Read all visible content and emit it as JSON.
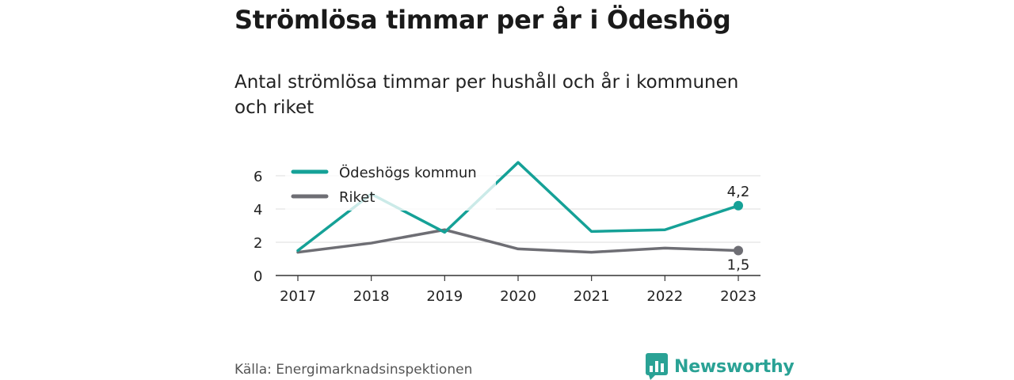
{
  "header": {
    "title": "Strömlösa timmar per år i Ödeshög",
    "subtitle": "Antal strömlösa timmar per hushåll och år i kommunen och riket"
  },
  "footer": {
    "source": "Källa: Energimarknadsinspektionen",
    "brand": "Newsworthy",
    "brand_icon": "newsworthy-logo-icon",
    "brand_color": "#2aa295"
  },
  "chart_data": {
    "type": "line",
    "categories": [
      "2017",
      "2018",
      "2019",
      "2020",
      "2021",
      "2022",
      "2023"
    ],
    "series": [
      {
        "name": "Ödeshögs kommun",
        "color": "#15a197",
        "values": [
          1.5,
          4.9,
          2.6,
          6.8,
          2.65,
          2.75,
          4.2
        ],
        "end_label": "4,2"
      },
      {
        "name": "Riket",
        "color": "#6e6e74",
        "values": [
          1.4,
          1.95,
          2.75,
          1.6,
          1.4,
          1.65,
          1.5
        ],
        "end_label": "1,5"
      }
    ],
    "y_ticks": [
      "0",
      "2",
      "4",
      "6"
    ],
    "ylim": [
      0,
      6.8
    ],
    "grid": true,
    "legend": "top-left"
  }
}
